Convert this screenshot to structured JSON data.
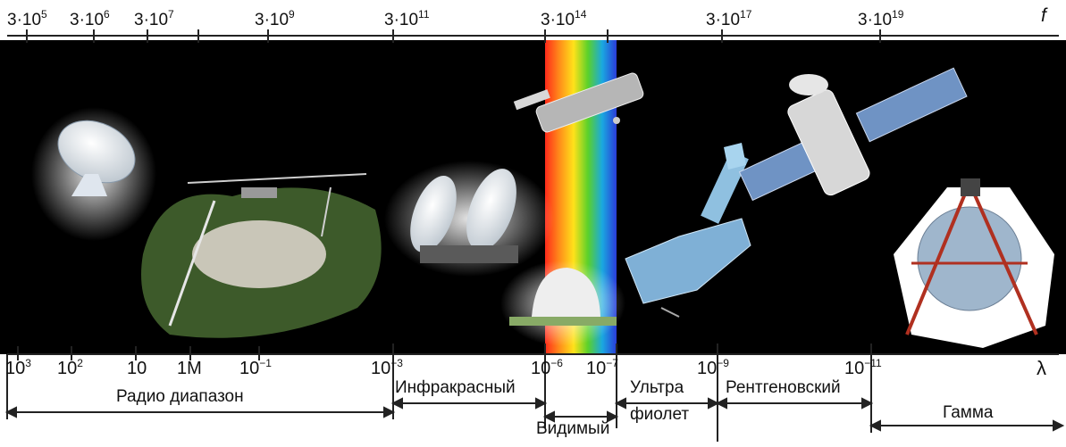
{
  "frequency_scale": {
    "symbol": "f",
    "ticks": [
      {
        "mant": "3·10",
        "exp": "5"
      },
      {
        "mant": "3·10",
        "exp": "6"
      },
      {
        "mant": "3·10",
        "exp": "7"
      },
      {
        "mant": "3·10",
        "exp": "9"
      },
      {
        "mant": "3·10",
        "exp": "11"
      },
      {
        "mant": "3·10",
        "exp": "14"
      },
      {
        "mant": "3·10",
        "exp": "17"
      },
      {
        "mant": "3·10",
        "exp": "19"
      }
    ]
  },
  "wavelength_scale": {
    "symbol": "λ",
    "ticks": [
      {
        "mant": "10",
        "exp": "3"
      },
      {
        "mant": "10",
        "exp": "2"
      },
      {
        "mant": "10",
        "exp": ""
      },
      {
        "mant": "1M",
        "exp": ""
      },
      {
        "mant": "10",
        "exp": "−1"
      },
      {
        "mant": "10",
        "exp": "−3"
      },
      {
        "mant": "10",
        "exp": "−6"
      },
      {
        "mant": "10",
        "exp": "−7"
      },
      {
        "mant": "10",
        "exp": "−9"
      },
      {
        "mant": "10",
        "exp": "−11"
      }
    ]
  },
  "bands": {
    "radio": "Радио диапазон",
    "infrared": "Инфракрасный",
    "visible": "Видимый",
    "ultraviolet_1": "Ультра",
    "ultraviolet_2": "фиолет",
    "xray": "Рентгеновский",
    "gamma": "Гамма"
  },
  "colors": {
    "background_strip": "#000000",
    "spectrum": [
      "#ff2a1a",
      "#ff8c1a",
      "#ffe21a",
      "#5bd12a",
      "#1aa8e0",
      "#2a3cd8"
    ]
  }
}
